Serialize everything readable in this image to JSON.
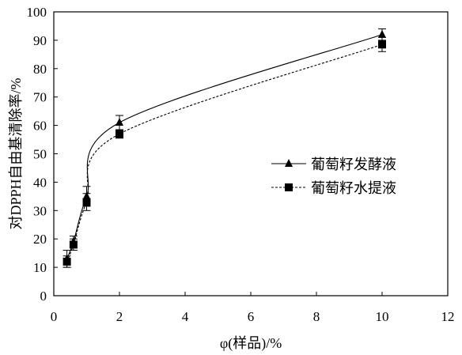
{
  "chart_data": {
    "type": "line",
    "title": "",
    "xlabel": "φ(样品)/%",
    "ylabel": "对DPPH自由基清除率/%",
    "xlim": [
      0,
      12
    ],
    "ylim": [
      0,
      100
    ],
    "x_ticks": [
      0,
      2,
      4,
      6,
      8,
      10,
      12
    ],
    "y_ticks": [
      0,
      10,
      20,
      30,
      40,
      50,
      60,
      70,
      80,
      90,
      100
    ],
    "grid": false,
    "legend_position": "center-right",
    "series": [
      {
        "name": "葡萄籽发酵液",
        "marker": "triangle",
        "line_style": "solid",
        "color": "#000000",
        "x": [
          0.4,
          0.6,
          1.0,
          2.0,
          10.0
        ],
        "y": [
          13,
          19,
          35,
          61,
          92
        ],
        "error": [
          3,
          2,
          3.5,
          2.5,
          2
        ]
      },
      {
        "name": "葡萄籽水提液",
        "marker": "square",
        "line_style": "dashed",
        "color": "#000000",
        "x": [
          0.4,
          0.6,
          1.0,
          2.0,
          10.0
        ],
        "y": [
          12,
          18,
          33,
          57,
          88.5
        ],
        "error": [
          2,
          2,
          3,
          1.5,
          2.5
        ]
      }
    ]
  }
}
